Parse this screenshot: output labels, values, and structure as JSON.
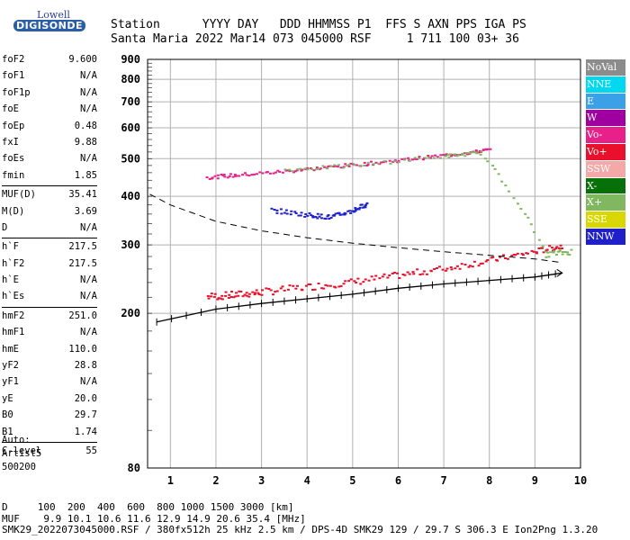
{
  "logo": {
    "line1": "Lowell",
    "line2": "DIGISONDE"
  },
  "header": {
    "labels": "Station      YYYY DAY   DDD HHMMSS P1  FFS S AXN PPS IGA PS",
    "values": "Santa Maria 2022 Mar14 073 045000 RSF     1 711 100 03+ 36"
  },
  "params": [
    {
      "k": "foF2",
      "v": "9.600"
    },
    {
      "k": "foF1",
      "v": "N/A"
    },
    {
      "k": "foF1p",
      "v": "N/A"
    },
    {
      "k": "foE",
      "v": "N/A"
    },
    {
      "k": "foEp",
      "v": "0.48"
    },
    {
      "k": "fxI",
      "v": "9.88"
    },
    {
      "k": "foEs",
      "v": "N/A"
    },
    {
      "k": "fmin",
      "v": "1.85"
    },
    {
      "k": "MUF(D)",
      "v": "35.41"
    },
    {
      "k": "M(D)",
      "v": "3.69"
    },
    {
      "k": "D",
      "v": "N/A"
    },
    {
      "k": "h`F",
      "v": "217.5"
    },
    {
      "k": "h`F2",
      "v": "217.5"
    },
    {
      "k": "h`E",
      "v": "N/A"
    },
    {
      "k": "h`Es",
      "v": "N/A"
    },
    {
      "k": "hmF2",
      "v": "251.0"
    },
    {
      "k": "hmF1",
      "v": "N/A"
    },
    {
      "k": "hmE",
      "v": "110.0"
    },
    {
      "k": "yF2",
      "v": "28.8"
    },
    {
      "k": "yF1",
      "v": "N/A"
    },
    {
      "k": "yE",
      "v": "20.0"
    },
    {
      "k": "B0",
      "v": "29.7"
    },
    {
      "k": "B1",
      "v": "1.74"
    },
    {
      "k": "C-level",
      "v": "55"
    }
  ],
  "auto": {
    "line1": "Auto:",
    "line2": "Artist5",
    "line3": "500200"
  },
  "legend": [
    {
      "label": "NoVal",
      "color": "#8c8c8c"
    },
    {
      "label": "NNE",
      "color": "#00d8f0"
    },
    {
      "label": "E",
      "color": "#3aa0e8"
    },
    {
      "label": "W",
      "color": "#a000a0"
    },
    {
      "label": "Vo-",
      "color": "#e8208a"
    },
    {
      "label": "Vo+",
      "color": "#e8102a"
    },
    {
      "label": "SSW",
      "color": "#f4a8a8"
    },
    {
      "label": "X-",
      "color": "#087008"
    },
    {
      "label": "X+",
      "color": "#80b860"
    },
    {
      "label": "SSE",
      "color": "#d8d800"
    },
    {
      "label": "NNW",
      "color": "#2020c8"
    }
  ],
  "bottom": {
    "line1": "D     100  200  400  600  800 1000 1500 3000 [km]",
    "line2": "MUF    9.9 10.1 10.6 11.6 12.9 14.9 20.6 35.4 [MHz]",
    "line3": "SMK29_2022073045000.RSF / 380fx512h 25 kHz 2.5 km / DPS-4D SMK29 129 / 29.7 S 306.3 E Ion2Png 1.3.20"
  },
  "chart_data": {
    "type": "scatter",
    "title": "",
    "xlabel": "",
    "ylabel": "",
    "xlim": [
      0.5,
      10
    ],
    "ylim": [
      80,
      900
    ],
    "y_scale": "log",
    "x_ticks": [
      "1",
      "2",
      "3",
      "4",
      "5",
      "6",
      "7",
      "8",
      "9",
      "10"
    ],
    "y_ticks": [
      "900",
      "800",
      "700",
      "600",
      "500",
      "400",
      "300",
      "200",
      "80"
    ],
    "series": [
      {
        "name": "Vo+",
        "points": [
          [
            1.8,
            222
          ],
          [
            2.4,
            224
          ],
          [
            3.0,
            228
          ],
          [
            4.0,
            235
          ],
          [
            5.0,
            242
          ],
          [
            6.0,
            252
          ],
          [
            7.0,
            262
          ],
          [
            8.0,
            275
          ],
          [
            9.0,
            290
          ],
          [
            9.6,
            300
          ]
        ]
      },
      {
        "name": "Vo-",
        "points": [
          [
            1.8,
            450
          ],
          [
            2.5,
            456
          ],
          [
            3.5,
            466
          ],
          [
            4.5,
            478
          ],
          [
            5.5,
            490
          ],
          [
            6.5,
            505
          ],
          [
            7.5,
            520
          ],
          [
            8.0,
            530
          ]
        ]
      },
      {
        "name": "NNW",
        "points": [
          [
            3.2,
            370
          ],
          [
            4.0,
            360
          ],
          [
            4.5,
            355
          ],
          [
            5.0,
            370
          ],
          [
            5.3,
            385
          ]
        ]
      },
      {
        "name": "X+",
        "points": [
          [
            3.5,
            470
          ],
          [
            5.0,
            482
          ],
          [
            7.0,
            510
          ],
          [
            7.8,
            520
          ],
          [
            9.2,
            285
          ],
          [
            9.8,
            290
          ]
        ]
      }
    ],
    "profile_line": [
      [
        0.7,
        190
      ],
      [
        2.0,
        205
      ],
      [
        3.0,
        212
      ],
      [
        4.0,
        218
      ],
      [
        5.0,
        224
      ],
      [
        6.0,
        232
      ],
      [
        7.0,
        238
      ],
      [
        8.0,
        243
      ],
      [
        9.0,
        248
      ],
      [
        9.6,
        254
      ]
    ],
    "dashed_curve": [
      [
        0.55,
        405
      ],
      [
        1.0,
        380
      ],
      [
        2.0,
        345
      ],
      [
        3.0,
        326
      ],
      [
        4.0,
        313
      ],
      [
        5.0,
        303
      ],
      [
        6.0,
        295
      ],
      [
        7.0,
        288
      ],
      [
        8.0,
        282
      ],
      [
        9.0,
        276
      ],
      [
        9.6,
        270
      ]
    ]
  }
}
